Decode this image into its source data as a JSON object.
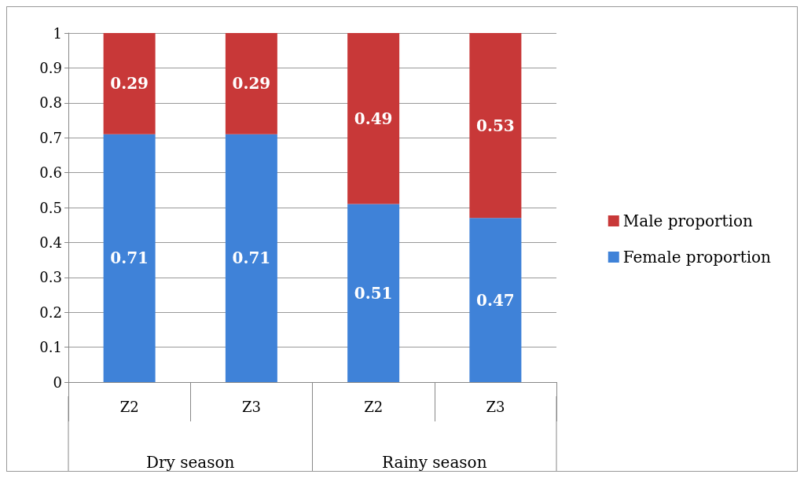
{
  "chart_data": {
    "type": "bar",
    "stacked": true,
    "categories": [
      "Z2",
      "Z3",
      "Z2",
      "Z3"
    ],
    "series": [
      {
        "name": "Female proportion",
        "color": "#3f82d8",
        "values": [
          0.71,
          0.71,
          0.51,
          0.47
        ]
      },
      {
        "name": "Male proportion",
        "color": "#c83838",
        "values": [
          0.29,
          0.29,
          0.49,
          0.53
        ]
      }
    ],
    "ylim": [
      0,
      1
    ],
    "yticks": [
      0,
      0.1,
      0.2,
      0.3,
      0.4,
      0.5,
      0.6,
      0.7,
      0.8,
      0.9,
      1
    ],
    "grid": "y",
    "legend": "right",
    "data_labels": true,
    "annotations": [
      "Dry season",
      "Rainy season"
    ]
  }
}
